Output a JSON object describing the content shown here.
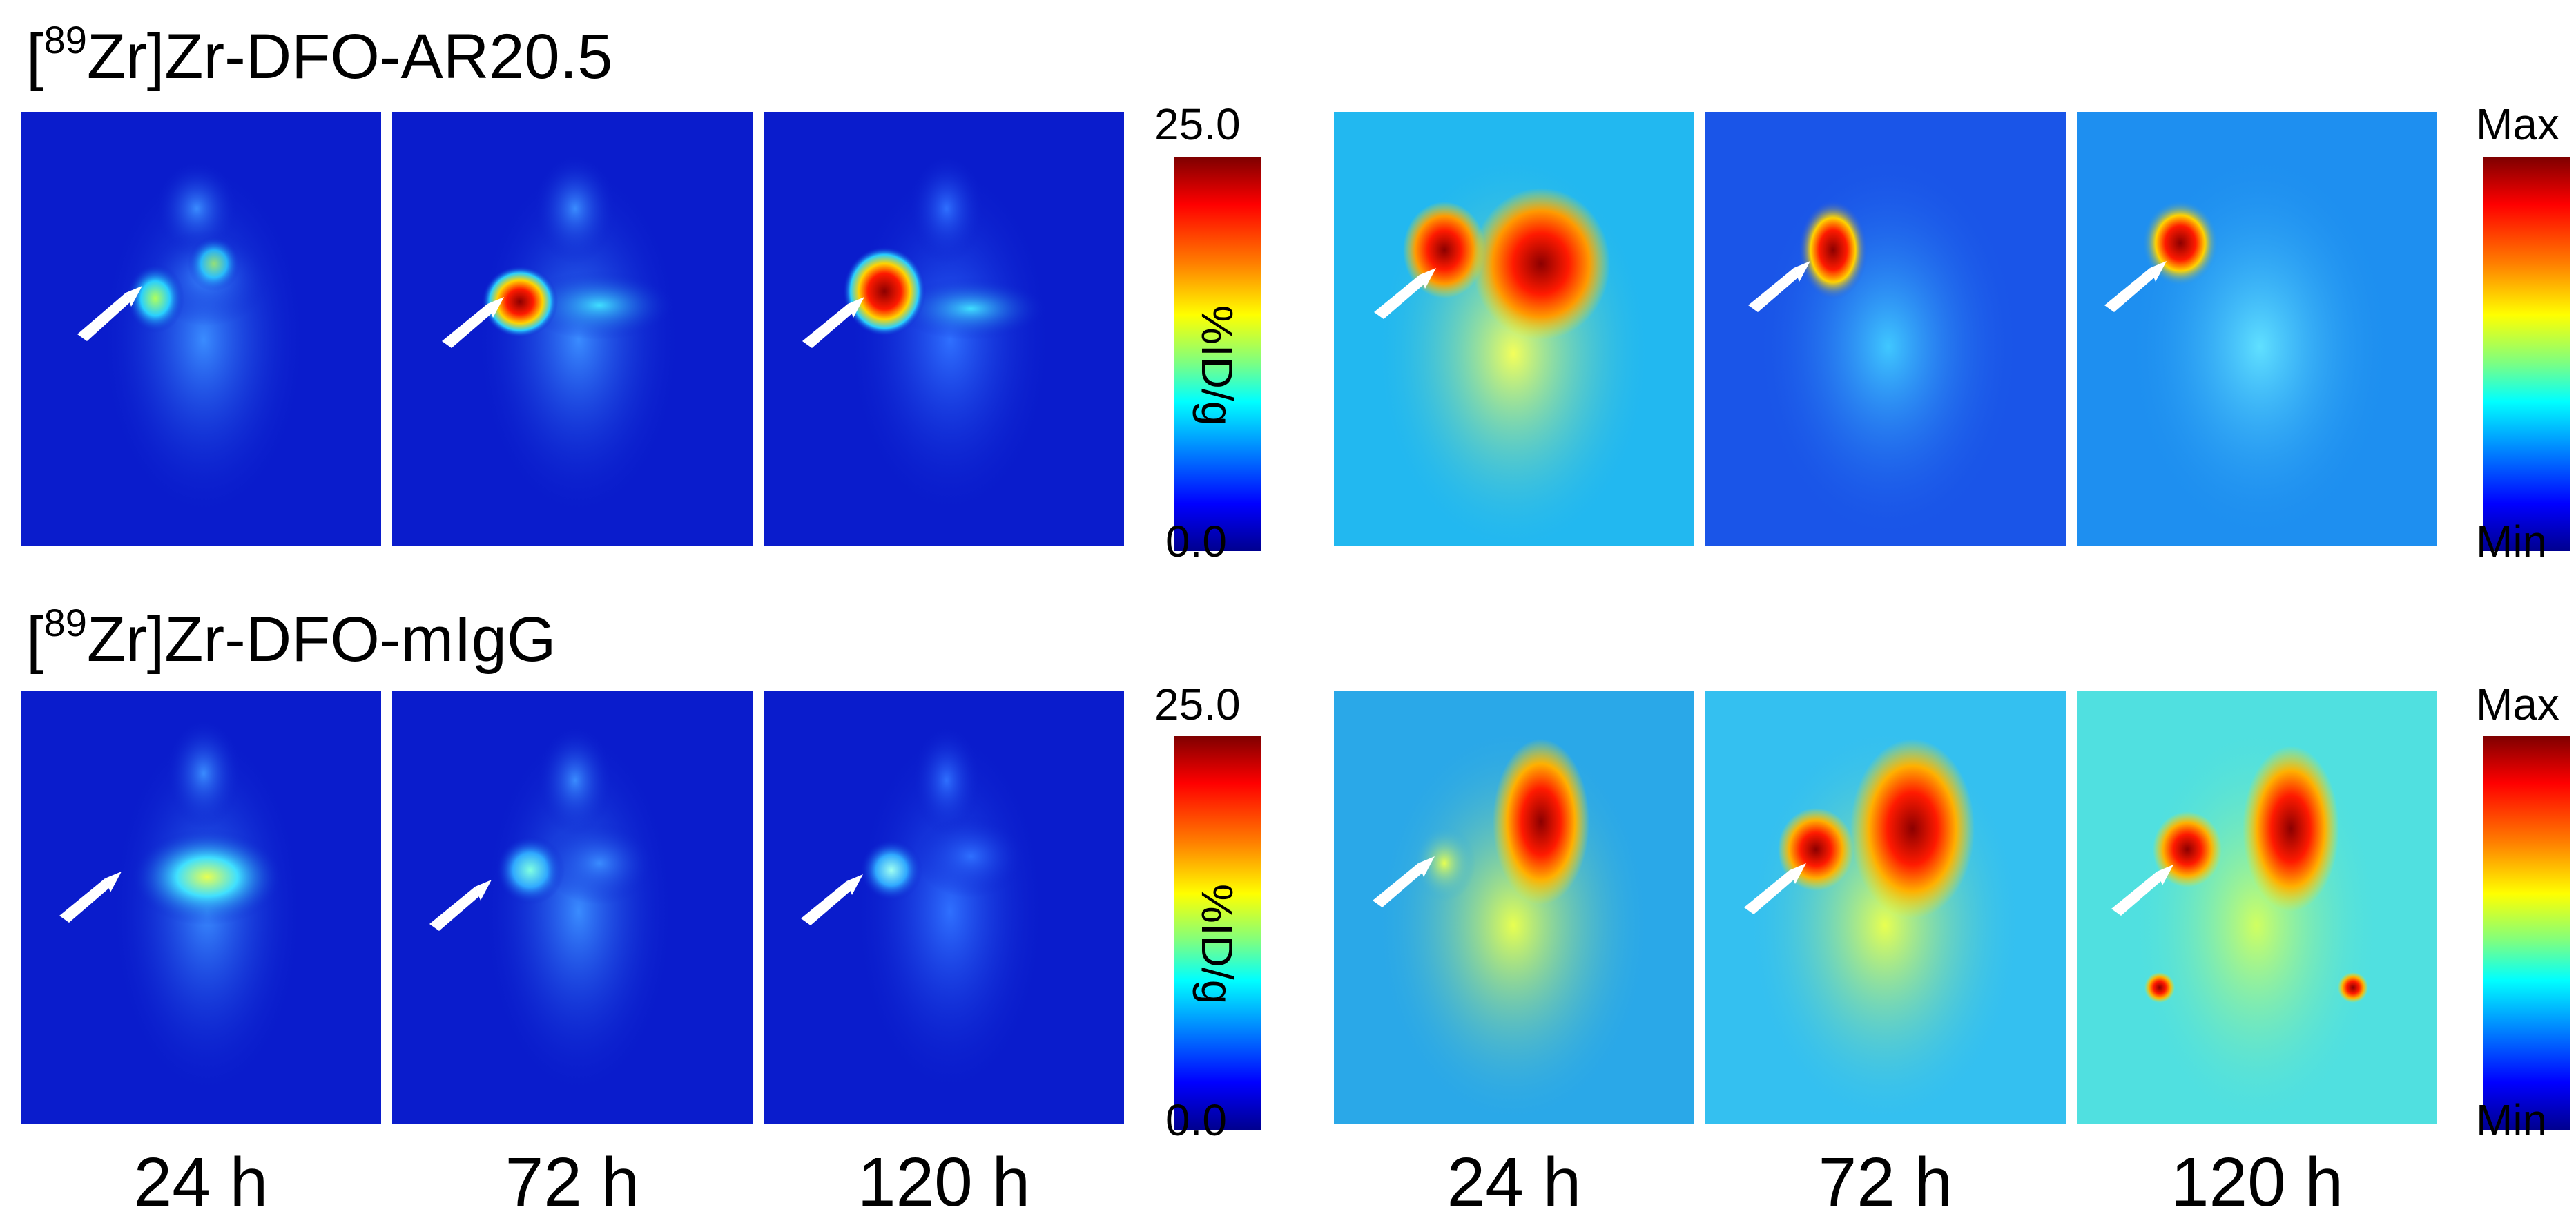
{
  "rows": [
    {
      "title_prefix": "[",
      "title_sup": "89",
      "title_rest": "Zr]Zr-DFO-AR20.5",
      "scale_quant": {
        "max": "25.0",
        "min": "0.0",
        "unit": "%ID/g"
      },
      "scale_rel": {
        "max": "Max",
        "min": "Min"
      }
    },
    {
      "title_prefix": "[",
      "title_sup": "89",
      "title_rest": "Zr]Zr-DFO-mIgG",
      "scale_quant": {
        "max": "25.0",
        "min": "0.0",
        "unit": "%ID/g"
      },
      "scale_rel": {
        "max": "Max",
        "min": "Min"
      }
    }
  ],
  "time_labels": [
    "24 h",
    "72 h",
    "120 h",
    "24 h",
    "72 h",
    "120 h"
  ],
  "colors": {
    "deep_blue_bg": "#0a1ccc",
    "cyan_bg": "#22b8f0",
    "arrow": "#ffffff"
  }
}
